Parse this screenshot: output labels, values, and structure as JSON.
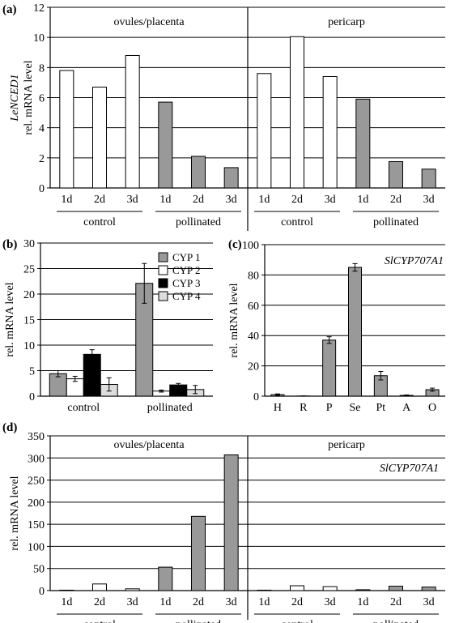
{
  "chart_data": [
    {
      "id": "a",
      "type": "bar",
      "panel_label": "(a)",
      "ylabel_gene": "LeNCED1",
      "ylabel": "rel. mRNA level",
      "ylim": [
        0,
        12
      ],
      "yticks": [
        0,
        2,
        4,
        6,
        8,
        10,
        12
      ],
      "grid": true,
      "sections": [
        {
          "name": "ovules/placenta",
          "groups": [
            {
              "name": "control",
              "fill": "white",
              "categories": [
                "1d",
                "2d",
                "3d"
              ],
              "values": [
                7.8,
                6.7,
                8.8
              ]
            },
            {
              "name": "pollinated",
              "fill": "gray",
              "categories": [
                "1d",
                "2d",
                "3d"
              ],
              "values": [
                5.7,
                2.1,
                1.35
              ]
            }
          ]
        },
        {
          "name": "pericarp",
          "groups": [
            {
              "name": "control",
              "fill": "white",
              "categories": [
                "1d",
                "2d",
                "3d"
              ],
              "values": [
                7.6,
                10.05,
                7.4
              ]
            },
            {
              "name": "pollinated",
              "fill": "gray",
              "categories": [
                "1d",
                "2d",
                "3d"
              ],
              "values": [
                5.9,
                1.75,
                1.25
              ]
            }
          ]
        }
      ]
    },
    {
      "id": "b",
      "type": "bar",
      "panel_label": "(b)",
      "ylabel": "rel. mRNA level",
      "ylim": [
        0,
        30
      ],
      "yticks": [
        0,
        5,
        10,
        15,
        20,
        25,
        30
      ],
      "grid": true,
      "legend_position": "top-right",
      "categories": [
        "control",
        "pollinated"
      ],
      "series": [
        {
          "name": "CYP 1",
          "color": "#999999",
          "values": [
            4.4,
            22.1
          ],
          "errors": [
            0.6,
            3.9
          ]
        },
        {
          "name": "CYP 2",
          "color": "#ffffff",
          "values": [
            3.4,
            1.0
          ],
          "errors": [
            0.5,
            0.2
          ]
        },
        {
          "name": "CYP 3",
          "color": "#000000",
          "values": [
            8.2,
            2.2
          ],
          "errors": [
            0.9,
            0.3
          ]
        },
        {
          "name": "CYP 4",
          "color": "#dddddd",
          "values": [
            2.3,
            1.3
          ],
          "errors": [
            1.3,
            0.8
          ]
        }
      ]
    },
    {
      "id": "c",
      "type": "bar",
      "panel_label": "(c)",
      "annotation": "SlCYP707A1",
      "ylabel": "rel. mRNA level",
      "ylim": [
        0,
        100
      ],
      "yticks": [
        0,
        20,
        40,
        60,
        80,
        100
      ],
      "grid": true,
      "categories": [
        "H",
        "R",
        "P",
        "Se",
        "Pt",
        "A",
        "O"
      ],
      "values": [
        1.0,
        0.1,
        37.0,
        85.0,
        13.5,
        0.5,
        4.3
      ],
      "errors": [
        0.5,
        0.1,
        2.2,
        2.5,
        2.8,
        0.3,
        1.0
      ]
    },
    {
      "id": "d",
      "type": "bar",
      "panel_label": "(d)",
      "annotation": "SlCYP707A1",
      "ylabel": "rel. mRNA level",
      "ylim": [
        0,
        350
      ],
      "yticks": [
        0,
        50,
        100,
        150,
        200,
        250,
        300,
        350
      ],
      "grid": true,
      "sections": [
        {
          "name": "ovules/placenta",
          "groups": [
            {
              "name": "control",
              "fill": "white",
              "categories": [
                "1d",
                "2d",
                "3d"
              ],
              "values": [
                1,
                15,
                4
              ]
            },
            {
              "name": "pollinated",
              "fill": "gray",
              "categories": [
                "1d",
                "2d",
                "3d"
              ],
              "values": [
                53,
                168,
                307
              ]
            }
          ]
        },
        {
          "name": "pericarp",
          "groups": [
            {
              "name": "control",
              "fill": "white",
              "categories": [
                "1d",
                "2d",
                "3d"
              ],
              "values": [
                1,
                11,
                9
              ]
            },
            {
              "name": "pollinated",
              "fill": "gray",
              "categories": [
                "1d",
                "2d",
                "3d"
              ],
              "values": [
                2,
                10,
                8
              ]
            }
          ]
        }
      ]
    }
  ],
  "colors": {
    "white_bar": "#ffffff",
    "gray_bar": "#999999",
    "axis": "#000000"
  }
}
